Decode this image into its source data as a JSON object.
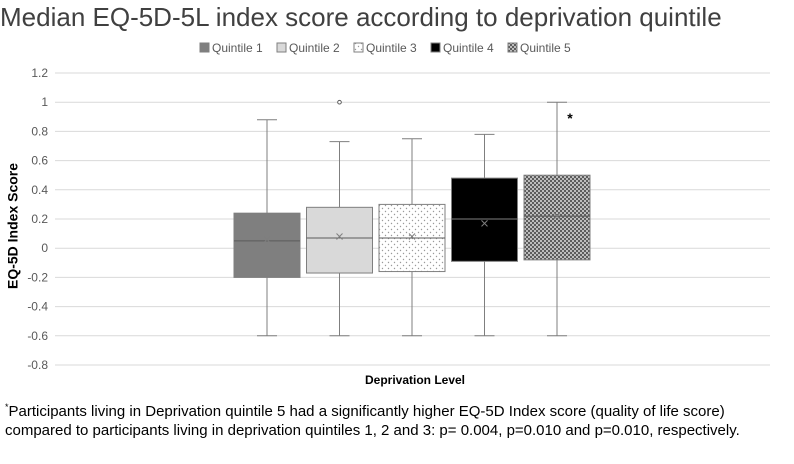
{
  "chart_data": {
    "type": "box",
    "title": "Median EQ-5D-5L index score according to deprivation quintile",
    "xlabel": "Deprivation Level",
    "ylabel": "EQ-5D Index Score",
    "ylim": [
      -0.8,
      1.2
    ],
    "yticks": [
      -0.8,
      -0.6,
      -0.4,
      -0.2,
      0,
      0.2,
      0.4,
      0.6,
      0.8,
      1,
      1.2
    ],
    "ytick_labels": [
      "-0.8",
      "-0.6",
      "-0.4",
      "-0.2",
      "0",
      "0.2",
      "0.4",
      "0.6",
      "0.8",
      "1",
      "1.2"
    ],
    "grid": true,
    "legend_position": "top",
    "series": [
      {
        "name": "Quintile 1",
        "fill": "#7f7f7f",
        "pattern": "solid",
        "min": -0.6,
        "q1": -0.2,
        "median": 0.05,
        "q3": 0.24,
        "max": 0.88,
        "mean": 0.06,
        "outliers": [],
        "annotation": ""
      },
      {
        "name": "Quintile 2",
        "fill": "#d9d9d9",
        "pattern": "solid",
        "min": -0.6,
        "q1": -0.17,
        "median": 0.07,
        "q3": 0.28,
        "max": 0.73,
        "mean": 0.08,
        "outliers": [
          1.0
        ],
        "annotation": ""
      },
      {
        "name": "Quintile 3",
        "fill": "#ffffff",
        "pattern": "dots",
        "min": -0.6,
        "q1": -0.16,
        "median": 0.07,
        "q3": 0.3,
        "max": 0.75,
        "mean": 0.08,
        "outliers": [],
        "annotation": ""
      },
      {
        "name": "Quintile 4",
        "fill": "#000000",
        "pattern": "solid",
        "min": -0.6,
        "q1": -0.09,
        "median": 0.2,
        "q3": 0.48,
        "max": 0.78,
        "mean": 0.17,
        "outliers": [],
        "annotation": ""
      },
      {
        "name": "Quintile 5",
        "fill": "#808080",
        "pattern": "checker",
        "min": -0.6,
        "q1": -0.08,
        "median": 0.22,
        "q3": 0.5,
        "max": 1.0,
        "mean": 0.22,
        "outliers": [],
        "annotation": "*"
      }
    ],
    "colors": {
      "axis": "#d9d9d9",
      "grid": "#d9d9d9",
      "whisker": "#7f7f7f",
      "tick_text": "#595959",
      "mean_marker": "#7f7f7f"
    }
  },
  "footnote": {
    "marker": "*",
    "text": "Participants living in Deprivation quintile 5 had a significantly higher EQ-5D Index score (quality of life score) compared to participants living in deprivation quintiles 1, 2 and 3: p= 0.004, p=0.010 and p=0.010, respectively."
  }
}
